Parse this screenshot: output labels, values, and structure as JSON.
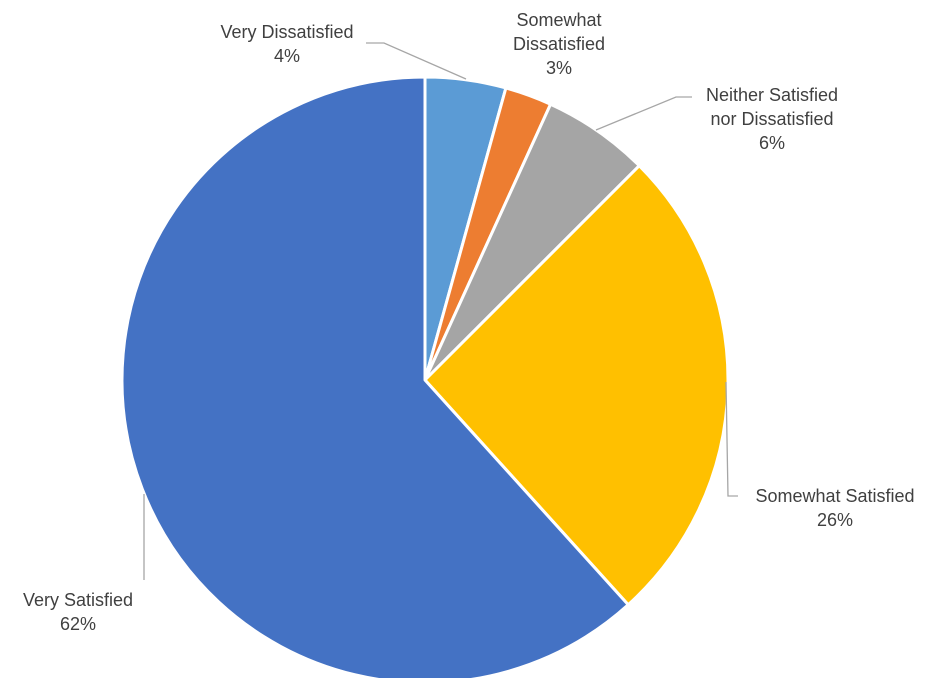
{
  "chart_data": {
    "type": "pie",
    "title": "",
    "start_angle_deg": 0,
    "direction": "clockwise",
    "slices": [
      {
        "label": "Very Dissatisfied",
        "label_lines": [
          "Very Dissatisfied"
        ],
        "percent_text": "4%",
        "value": 4.3,
        "color": "#5b9bd5"
      },
      {
        "label": "Somewhat Dissatisfied",
        "label_lines": [
          "Somewhat",
          "Dissatisfied"
        ],
        "percent_text": "3%",
        "value": 2.5,
        "color": "#ed7d31"
      },
      {
        "label": "Neither Satisfied nor Dissatisfied",
        "label_lines": [
          "Neither Satisfied",
          "nor Dissatisfied"
        ],
        "percent_text": "6%",
        "value": 5.7,
        "color": "#a5a5a5"
      },
      {
        "label": "Somewhat Satisfied",
        "label_lines": [
          "Somewhat Satisfied"
        ],
        "percent_text": "26%",
        "value": 25.8,
        "color": "#ffc000"
      },
      {
        "label": "Very Satisfied",
        "label_lines": [
          "Very Satisfied"
        ],
        "percent_text": "62%",
        "value": 61.7,
        "color": "#4472c4"
      }
    ],
    "leader_line_color": "#a6a6a6",
    "slice_border_color": "#ffffff"
  }
}
